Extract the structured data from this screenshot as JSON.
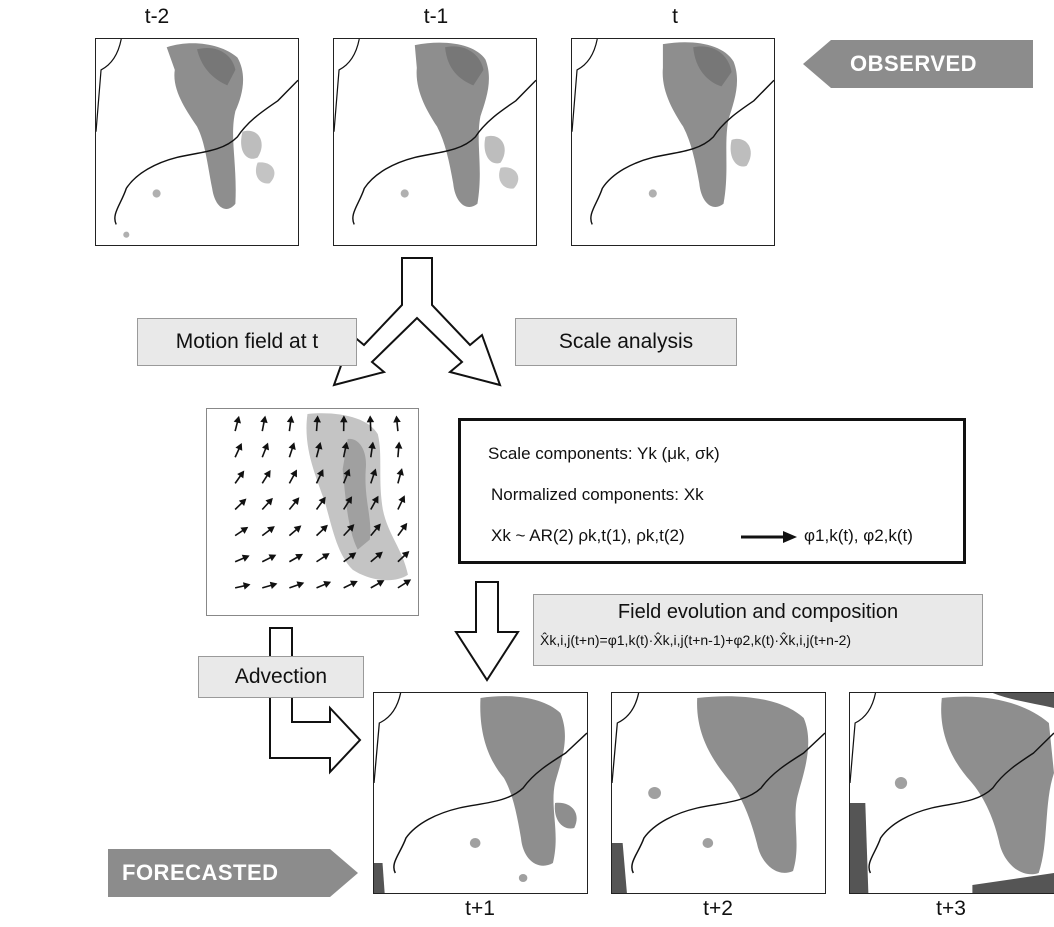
{
  "observed": {
    "badge": "OBSERVED",
    "labels": [
      "t-2",
      "t-1",
      "t"
    ]
  },
  "forecasted": {
    "badge": "FORECASTED",
    "labels": [
      "t+1",
      "t+2",
      "t+3"
    ]
  },
  "steps": {
    "motion_field": "Motion field at t",
    "scale_analysis": "Scale analysis",
    "advection": "Advection",
    "field_evolution_title": "Field evolution and composition",
    "field_evolution_formula": "X̂k,i,j(t+n)=φ1,k(t)·X̂k,i,j(t+n-1)+φ2,k(t)·X̂k,i,j(t+n-2)"
  },
  "scale_box": {
    "line1": "Scale components: Yk (μk, σk)",
    "line2": "Normalized components: Xk",
    "line3_left": "Xk ~ AR(2)   ρk,t(1), ρk,t(2)",
    "line3_right": "φ1,k(t), φ2,k(t)"
  },
  "colors": {
    "precip": "#8e8e8e",
    "precip_light": "#c4c4c4",
    "badge": "#8c8c8c",
    "box_fill": "#e9e9e9"
  },
  "icons": [
    "motion-vector-field",
    "hollow-arrow"
  ]
}
